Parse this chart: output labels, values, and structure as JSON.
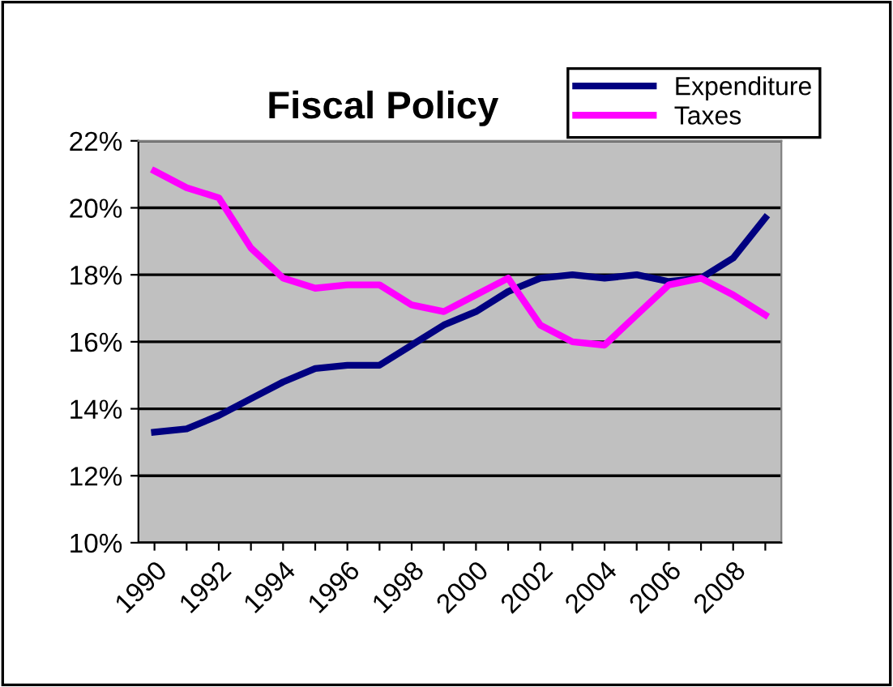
{
  "chart_data": {
    "type": "line",
    "title": "Fiscal Policy",
    "categories": [
      "1990",
      null,
      "1992",
      null,
      "1994",
      null,
      "1996",
      null,
      "1998",
      null,
      "2000",
      null,
      "2002",
      null,
      "2004",
      null,
      "2006",
      null,
      "2008",
      null
    ],
    "series": [
      {
        "name": "Expenditure",
        "color": "#000080",
        "values": [
          13.3,
          13.4,
          13.8,
          14.3,
          14.8,
          15.2,
          15.3,
          15.3,
          15.9,
          16.5,
          16.9,
          17.5,
          17.9,
          18.0,
          17.9,
          18.0,
          17.8,
          17.9,
          18.5,
          19.7
        ]
      },
      {
        "name": "Taxes",
        "color": "#ff00ff",
        "values": [
          21.1,
          20.6,
          20.3,
          18.8,
          17.9,
          17.6,
          17.7,
          17.7,
          17.1,
          16.9,
          17.4,
          17.9,
          16.5,
          16.0,
          15.9,
          16.8,
          17.7,
          17.9,
          17.4,
          16.8
        ]
      }
    ],
    "ylim": [
      10,
      22
    ],
    "yticks": [
      {
        "value": 10,
        "label": "10%"
      },
      {
        "value": 12,
        "label": "12%"
      },
      {
        "value": 14,
        "label": "14%"
      },
      {
        "value": 16,
        "label": "16%"
      },
      {
        "value": 18,
        "label": "18%"
      },
      {
        "value": 20,
        "label": "20%"
      },
      {
        "value": 22,
        "label": "22%"
      }
    ],
    "grid": "y",
    "legend": "top right",
    "marker": "none",
    "line_style": "solid"
  }
}
